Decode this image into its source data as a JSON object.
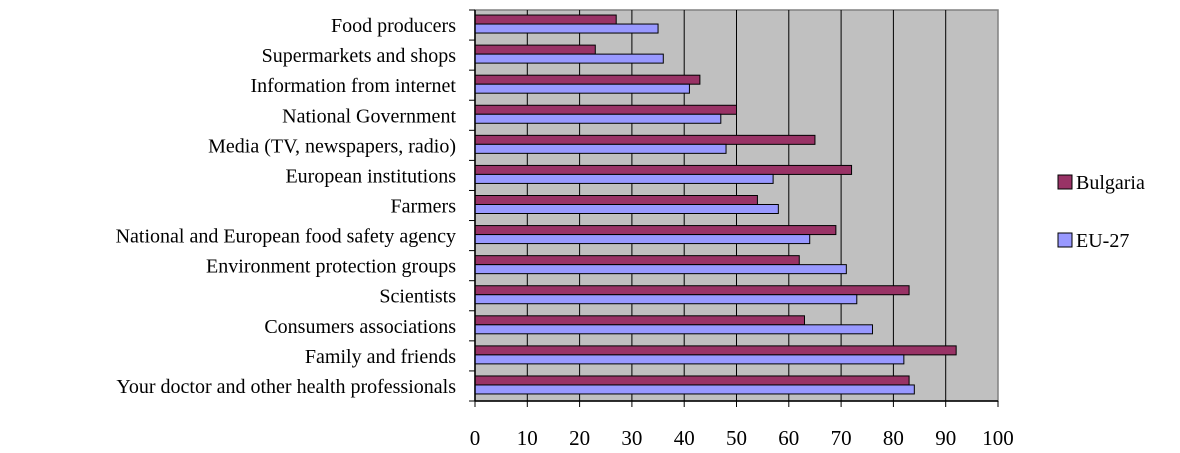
{
  "chart_data": {
    "type": "bar",
    "orientation": "horizontal",
    "categories": [
      "Food producers",
      "Supermarkets and shops",
      "Information from internet",
      "National Government",
      "Media (TV, newspapers, radio)",
      "European institutions",
      "Farmers",
      "National and European food safety agency",
      "Environment protection groups",
      "Scientists",
      "Consumers associations",
      "Family and friends",
      "Your doctor and other health professionals"
    ],
    "series": [
      {
        "name": "Bulgaria",
        "color": "#993366",
        "values": [
          27,
          23,
          43,
          50,
          65,
          72,
          54,
          69,
          62,
          83,
          63,
          92,
          83
        ]
      },
      {
        "name": "EU-27",
        "color": "#9999ff",
        "values": [
          35,
          36,
          41,
          47,
          48,
          57,
          58,
          64,
          71,
          73,
          76,
          82,
          84
        ]
      }
    ],
    "xlim": [
      0,
      100
    ],
    "x_ticks": [
      0,
      10,
      20,
      30,
      40,
      50,
      60,
      70,
      80,
      90,
      100
    ],
    "grid": true,
    "plot_background": "#c0c0c0",
    "legend_position": "right",
    "title": "",
    "xlabel": "",
    "ylabel": ""
  }
}
